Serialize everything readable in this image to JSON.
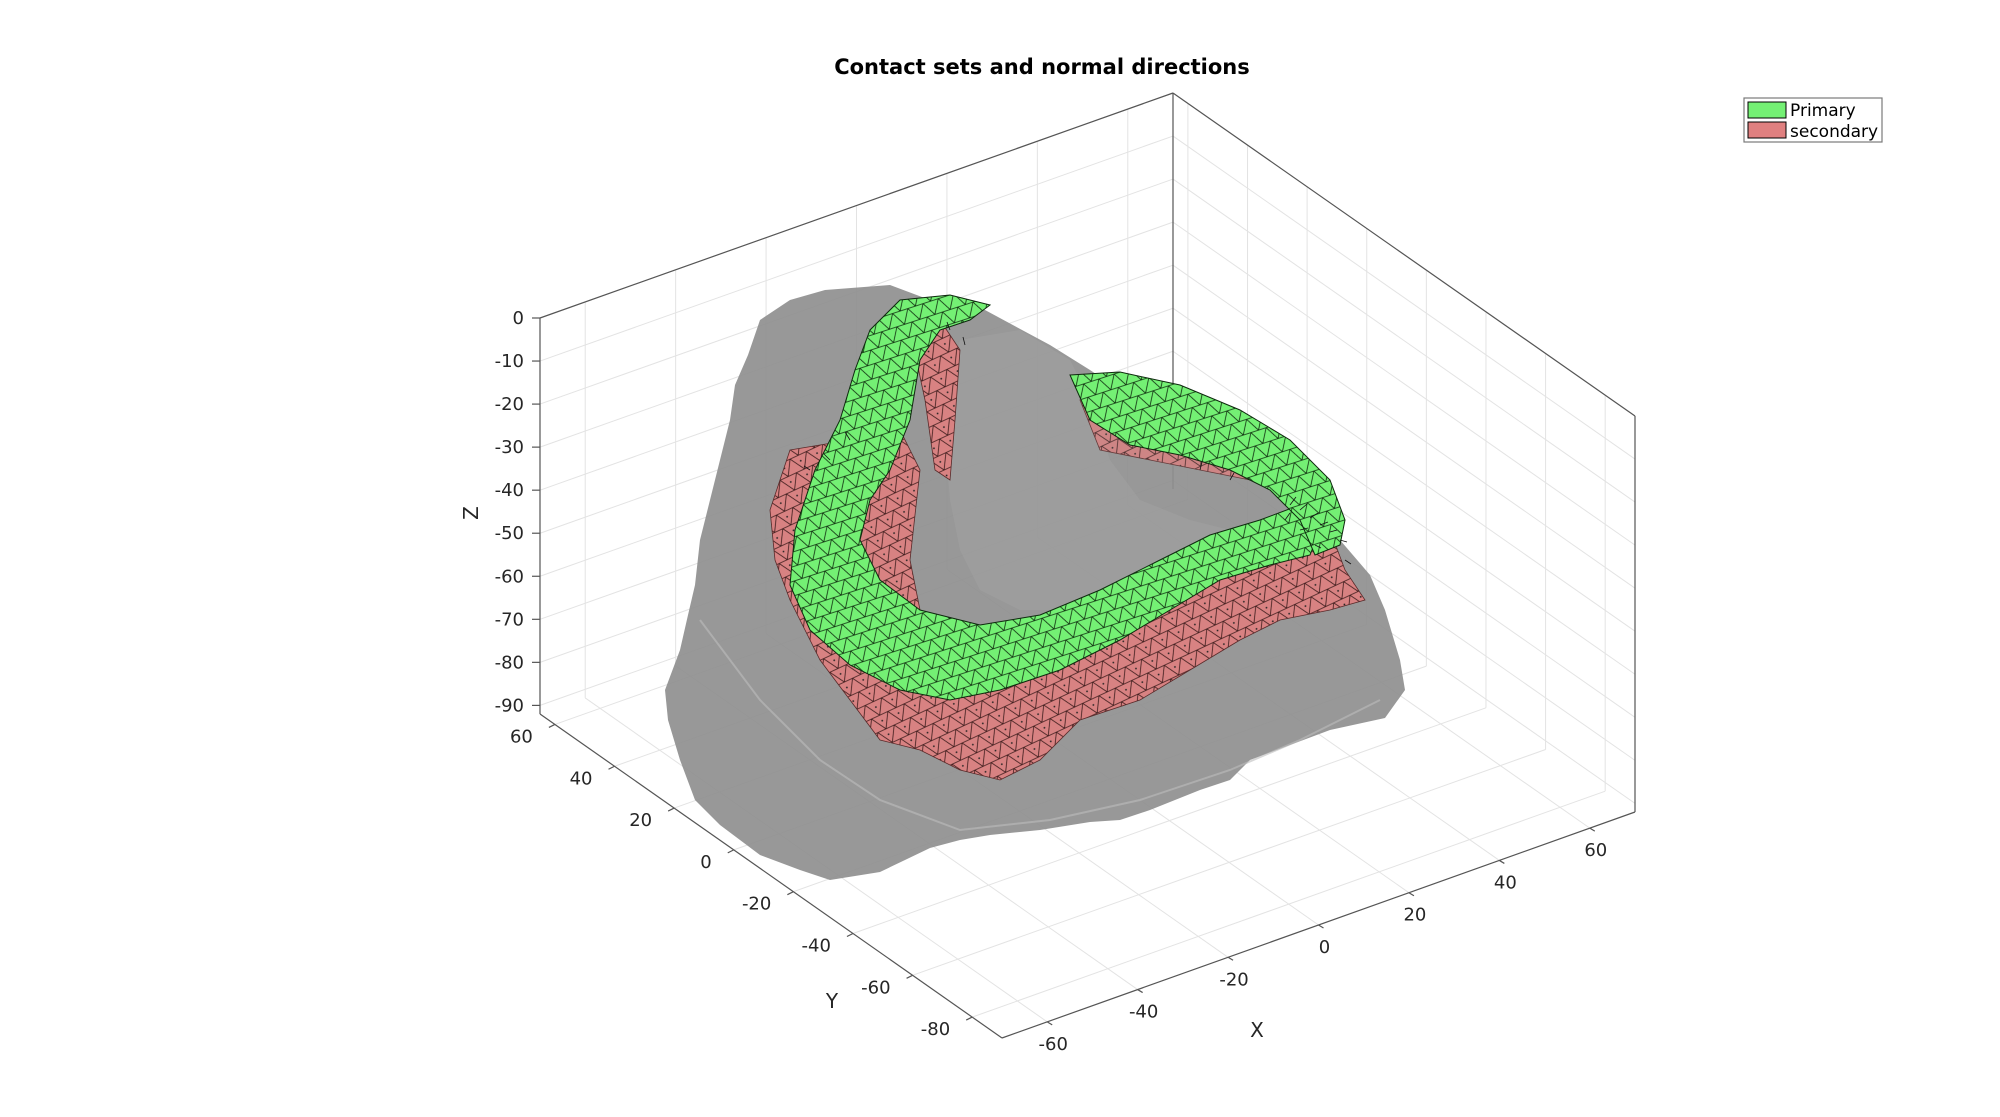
{
  "chart_data": {
    "type": "3d-surface",
    "title": "Contact sets and normal directions",
    "xlabel": "X",
    "ylabel": "Y",
    "zlabel": "Z",
    "x_ticks": [
      -60,
      -40,
      -20,
      0,
      20,
      40,
      60
    ],
    "y_ticks": [
      -80,
      -60,
      -40,
      -20,
      0,
      20,
      40,
      60
    ],
    "z_ticks": [
      0,
      -10,
      -20,
      -30,
      -40,
      -50,
      -60,
      -70,
      -80,
      -90
    ],
    "xlim": [
      -70,
      70
    ],
    "ylim": [
      -90,
      65
    ],
    "zlim": [
      -92,
      0
    ],
    "grid": true,
    "legend_position": "top-right",
    "series": [
      {
        "name": "Primary",
        "color": "#7cf57c",
        "edge_color": "#000000"
      },
      {
        "name": "secondary",
        "color": "#e08080",
        "edge_color": "#000000"
      }
    ],
    "background_surface_color": "#8c8c8c"
  }
}
